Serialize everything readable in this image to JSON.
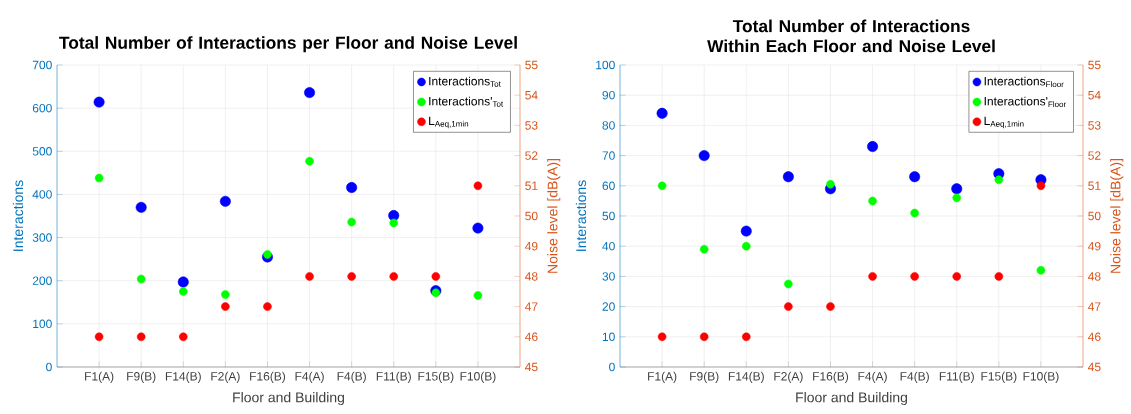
{
  "chart_data": [
    {
      "type": "scatter",
      "title": "Total Number of Interactions per Floor and Noise Level",
      "xlabel": "Floor and Building",
      "ylabel": "Interactions",
      "y2label": "Noise level [dB(A)]",
      "categories": [
        "F1(A)",
        "F9(B)",
        "F14(B)",
        "F2(A)",
        "F16(B)",
        "F4(A)",
        "F4(B)",
        "F11(B)",
        "F15(B)",
        "F10(B)"
      ],
      "series": [
        {
          "name": "Interactions$_{Tot}$",
          "color": "#0000ff",
          "values": [
            614,
            370,
            197,
            384,
            255,
            636,
            416,
            351,
            177,
            322
          ]
        },
        {
          "name": "Interactions'$_{Tot}$",
          "color": "#00ff00",
          "values": [
            438,
            204,
            175,
            168,
            261,
            477,
            336,
            334,
            172,
            166
          ]
        },
        {
          "name": "L$_{Aeq,1min}$",
          "color": "#ff0000",
          "axis": "y2",
          "values": [
            46,
            46,
            46,
            47,
            47,
            48,
            48,
            48,
            48,
            51
          ]
        }
      ],
      "ylim": [
        0,
        700
      ],
      "yticks": [
        0,
        100,
        200,
        300,
        400,
        500,
        600,
        700
      ],
      "y2lim": [
        45,
        55
      ],
      "y2ticks": [
        45,
        46,
        47,
        48,
        49,
        50,
        51,
        52,
        53,
        54,
        55
      ],
      "grid": true,
      "legend": "top right",
      "marker": "circle"
    },
    {
      "type": "scatter",
      "title": "Total Number of Interactions Within Each Floor and Noise Level",
      "xlabel": "Floor and Building",
      "ylabel": "Interactions",
      "y2label": "Noise level [dB(A)]",
      "categories": [
        "F1(A)",
        "F9(B)",
        "F14(B)",
        "F2(A)",
        "F16(B)",
        "F4(A)",
        "F4(B)",
        "F11(B)",
        "F15(B)",
        "F10(B)"
      ],
      "series": [
        {
          "name": "Interactions$_{Floor}$",
          "color": "#0000ff",
          "values": [
            84,
            70,
            45,
            63,
            59,
            73,
            63,
            59,
            64,
            62
          ]
        },
        {
          "name": "Interactions'$_{Floor}$",
          "color": "#00ff00",
          "values": [
            60,
            39,
            40,
            27.5,
            60.5,
            55,
            51,
            56,
            62,
            32
          ]
        },
        {
          "name": "L$_{Aeq,1min}$",
          "color": "#ff0000",
          "axis": "y2",
          "values": [
            46,
            46,
            46,
            47,
            47,
            48,
            48,
            48,
            48,
            51
          ]
        }
      ],
      "ylim": [
        0,
        100
      ],
      "yticks": [
        0,
        10,
        20,
        30,
        40,
        50,
        60,
        70,
        80,
        90,
        100
      ],
      "y2lim": [
        45,
        55
      ],
      "y2ticks": [
        45,
        46,
        47,
        48,
        49,
        50,
        51,
        52,
        53,
        54,
        55
      ],
      "grid": true,
      "legend": "top right",
      "marker": "circle"
    }
  ]
}
